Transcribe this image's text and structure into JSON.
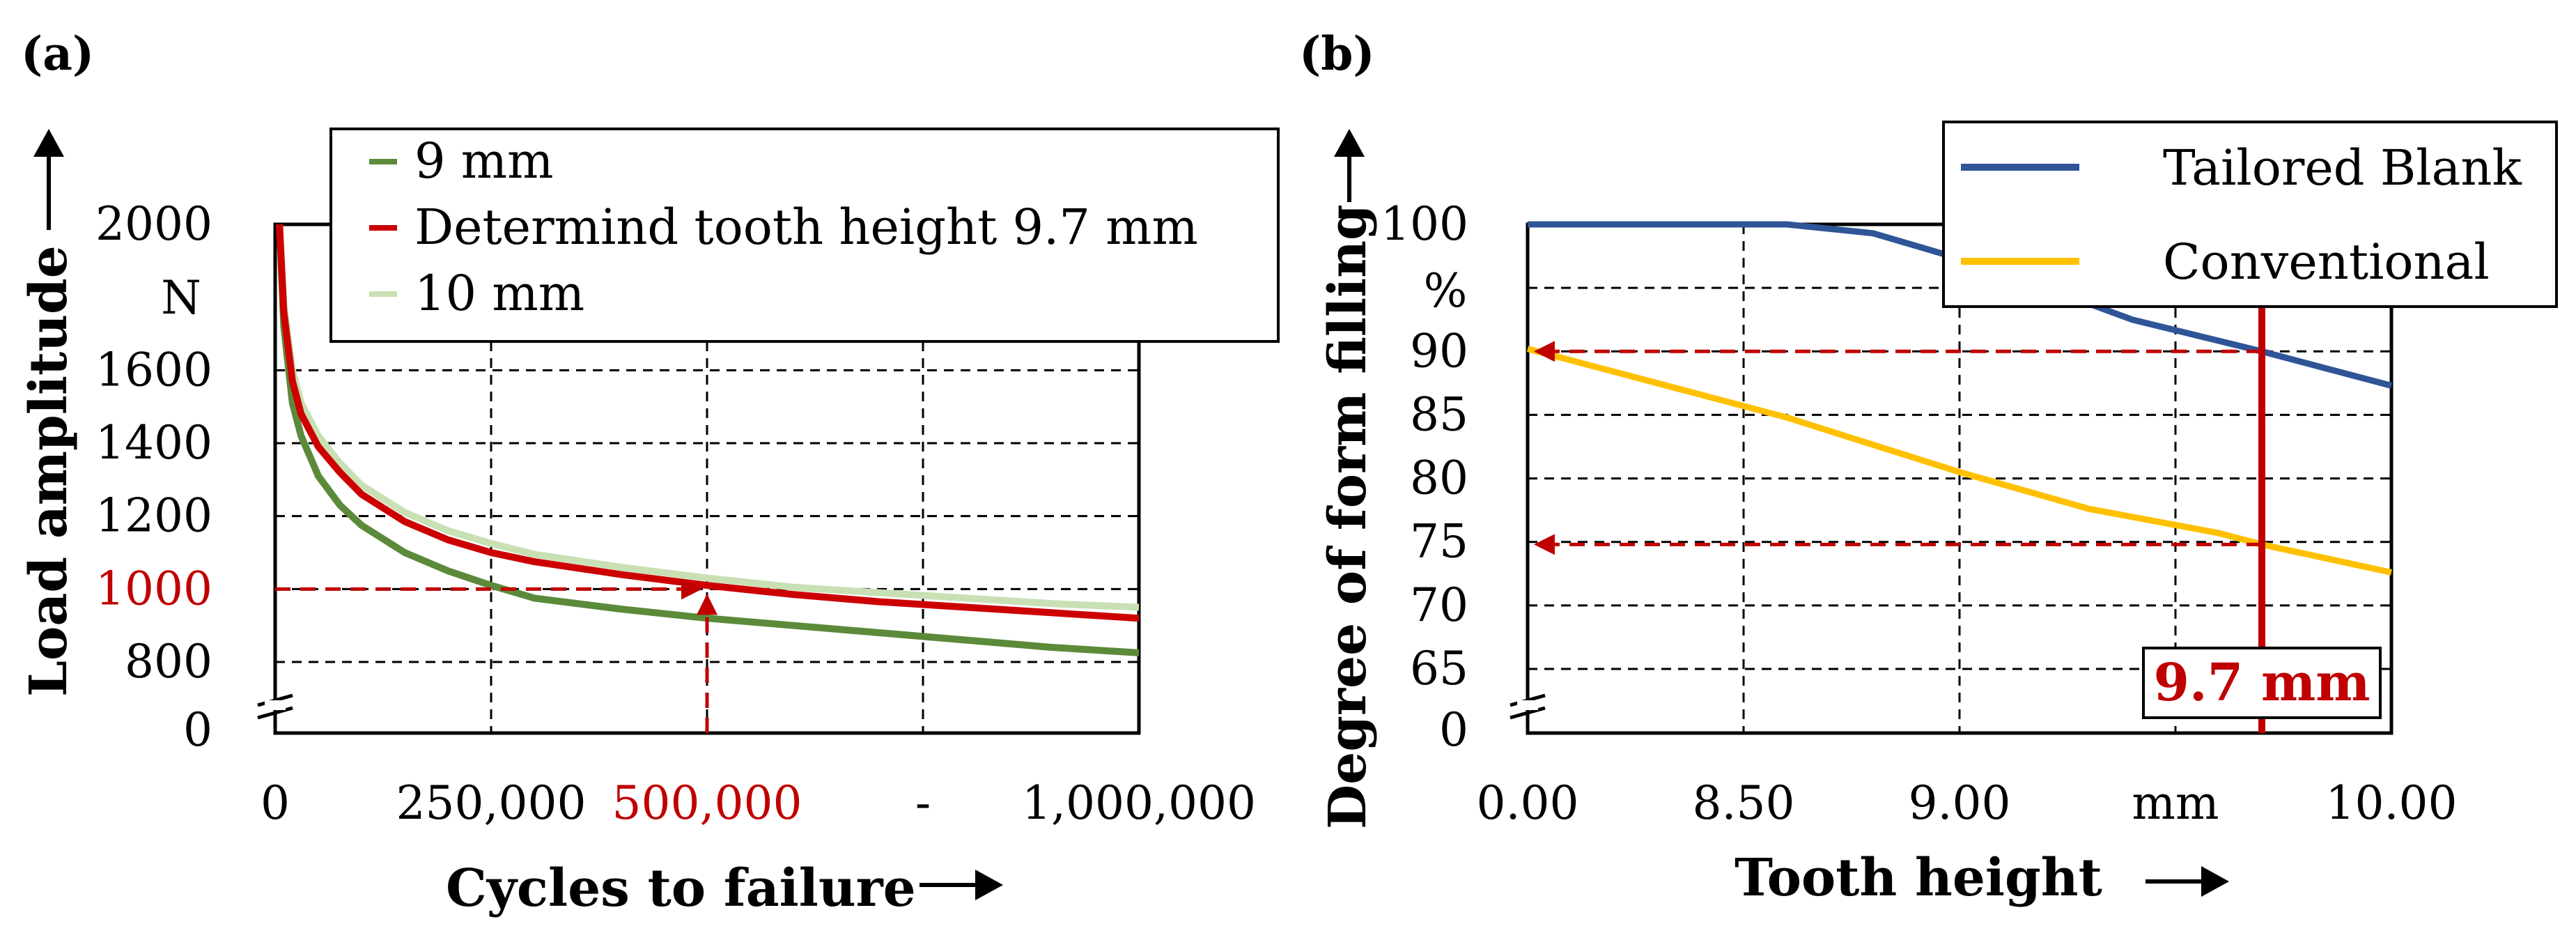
{
  "colors": {
    "green_9mm": "#5b8a3a",
    "red_determined": "#cc0000",
    "lightgreen_10mm": "#c8e0b4",
    "blue_tailored": "#2f5597",
    "yellow_conventional": "#ffc000",
    "annotation_red": "#c00000"
  },
  "panel_a": {
    "label": "(a)",
    "chart_data": {
      "type": "line",
      "xlabel": "Cycles to failure",
      "ylabel": "Load amplitude",
      "y_unit": "N",
      "x_tick_labels": [
        "0",
        "250,000",
        "500,000",
        "-",
        "1,000,000"
      ],
      "y_tick_labels": [
        "0",
        "800",
        "1000",
        "1200",
        "1400",
        "1600",
        "2000"
      ],
      "y_break": true,
      "xlim": [
        0,
        1000000
      ],
      "ylim": [
        700,
        2000
      ],
      "grid": true,
      "legend_position": "top",
      "series": [
        {
          "name": "9 mm",
          "color": "#5b8a3a",
          "x": [
            5000,
            10000,
            20000,
            30000,
            50000,
            75000,
            100000,
            150000,
            200000,
            250000,
            300000,
            400000,
            500000,
            600000,
            700000,
            800000,
            900000,
            1000000
          ],
          "y": [
            2000,
            1720,
            1510,
            1420,
            1310,
            1230,
            1175,
            1100,
            1050,
            1010,
            975,
            945,
            920,
            900,
            880,
            860,
            840,
            825
          ]
        },
        {
          "name": "Determind tooth height 9.7 mm",
          "color": "#cc0000",
          "x": [
            5000,
            10000,
            20000,
            30000,
            50000,
            75000,
            100000,
            150000,
            200000,
            250000,
            300000,
            400000,
            500000,
            600000,
            700000,
            800000,
            900000,
            1000000
          ],
          "y": [
            2000,
            1760,
            1570,
            1480,
            1390,
            1320,
            1260,
            1185,
            1135,
            1100,
            1075,
            1040,
            1010,
            985,
            965,
            950,
            935,
            920
          ]
        },
        {
          "name": "10 mm",
          "color": "#c8e0b4",
          "x": [
            5000,
            10000,
            20000,
            30000,
            50000,
            75000,
            100000,
            150000,
            200000,
            250000,
            300000,
            400000,
            500000,
            600000,
            700000,
            800000,
            900000,
            1000000
          ],
          "y": [
            2000,
            1780,
            1600,
            1510,
            1420,
            1345,
            1285,
            1210,
            1160,
            1125,
            1095,
            1060,
            1030,
            1005,
            990,
            975,
            960,
            950
          ]
        }
      ],
      "annotations": [
        {
          "type": "hline_arrow",
          "y": 1000,
          "x_from": 0,
          "x_to": 500000,
          "color": "#c00000"
        },
        {
          "type": "vline_arrow",
          "x": 500000,
          "y_from": 700,
          "y_to": 1000,
          "color": "#c00000"
        }
      ],
      "highlighted_tick_labels": {
        "y": "1000",
        "x": "500,000"
      }
    }
  },
  "panel_b": {
    "label": "(b)",
    "chart_data": {
      "type": "line",
      "xlabel": "Tooth height",
      "ylabel": "Degree of form filling",
      "y_unit": "%",
      "x_tick_labels": [
        "0.00",
        "8.50",
        "9.00",
        "mm",
        "10.00"
      ],
      "y_tick_labels": [
        "0",
        "65",
        "70",
        "75",
        "80",
        "85",
        "90",
        "100"
      ],
      "y_break": true,
      "xlim": [
        8,
        10
      ],
      "ylim": [
        62,
        100
      ],
      "grid": true,
      "legend_position": "top-right",
      "series": [
        {
          "name": "Tailored Blank",
          "color": "#2f5597",
          "x": [
            8.0,
            8.6,
            8.8,
            9.0,
            9.2,
            9.4,
            9.7,
            10.0
          ],
          "y": [
            100,
            100,
            99.3,
            97.3,
            95,
            92.5,
            90,
            87.3
          ]
        },
        {
          "name": "Conventional",
          "color": "#ffc000",
          "x": [
            8.0,
            8.3,
            8.6,
            9.0,
            9.3,
            9.6,
            9.7,
            10.0
          ],
          "y": [
            90.2,
            87.5,
            84.8,
            80.5,
            77.6,
            75.7,
            74.8,
            72.6
          ]
        }
      ],
      "annotations": [
        {
          "type": "vline",
          "x": 9.7,
          "color": "#c00000",
          "label": "9.7 mm"
        },
        {
          "type": "hline_arrow",
          "y": 90,
          "x_from": 9.7,
          "x_to": 8.0,
          "color": "#c00000"
        },
        {
          "type": "hline_arrow",
          "y": 74.8,
          "x_from": 9.7,
          "x_to": 8.0,
          "color": "#c00000"
        }
      ]
    }
  }
}
